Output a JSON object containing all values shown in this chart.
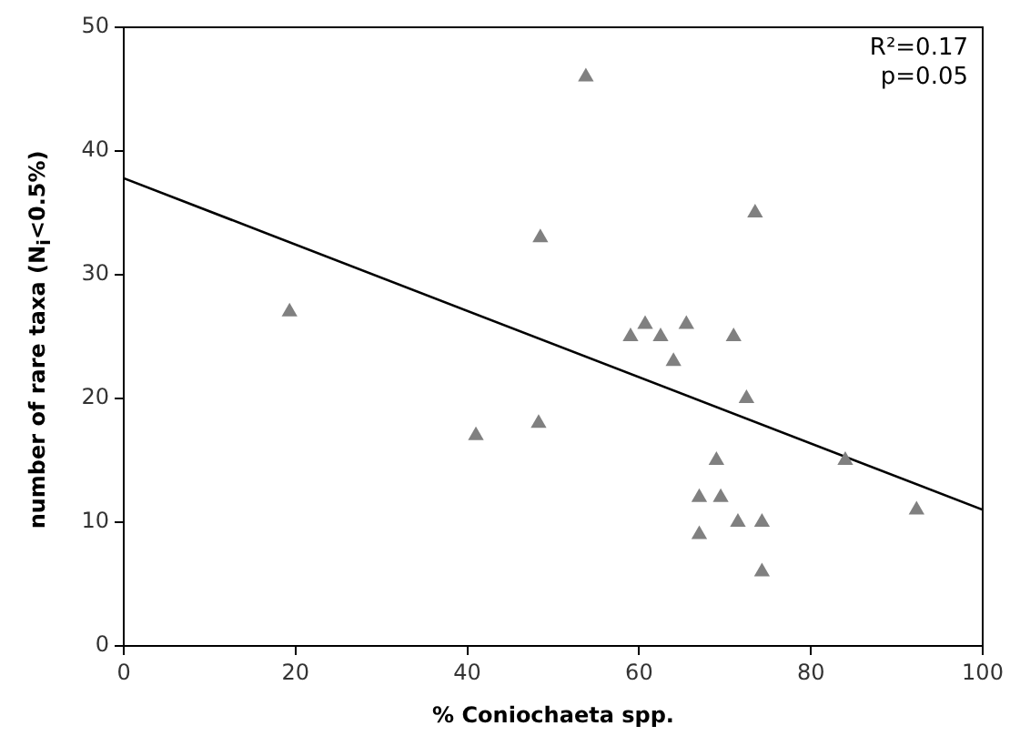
{
  "chart_data": {
    "type": "scatter",
    "xlabel": "% Coniochaeta spp.",
    "ylabel": "number of rare taxa (N$_{i}$<0.5%)",
    "xlim": [
      0,
      100
    ],
    "ylim": [
      0,
      50
    ],
    "xticks": [
      0,
      20,
      40,
      60,
      80,
      100
    ],
    "yticks": [
      0,
      10,
      20,
      30,
      40,
      50
    ],
    "grid": false,
    "legend": false,
    "marker": "triangle",
    "annotations": [
      "R²=0.17",
      "p=0.05"
    ],
    "series": [
      {
        "color": "#808080",
        "x": [
          19.3,
          41,
          48.3,
          48.5,
          53.8,
          59,
          60.7,
          62.5,
          64,
          65.5,
          67,
          67,
          69,
          69.5,
          71,
          71.5,
          72.5,
          73.5,
          74.3,
          74.3,
          84,
          92.3
        ],
        "values": [
          27,
          17,
          18,
          33,
          46,
          25,
          26,
          25,
          23,
          26,
          12,
          9,
          15,
          12,
          25,
          10,
          20,
          35,
          10,
          6,
          15,
          11
        ]
      },
      {
        "type": "line",
        "color": "#000000",
        "marker": "none",
        "x": [
          0,
          100
        ],
        "values": [
          37.8,
          11
        ]
      }
    ]
  }
}
